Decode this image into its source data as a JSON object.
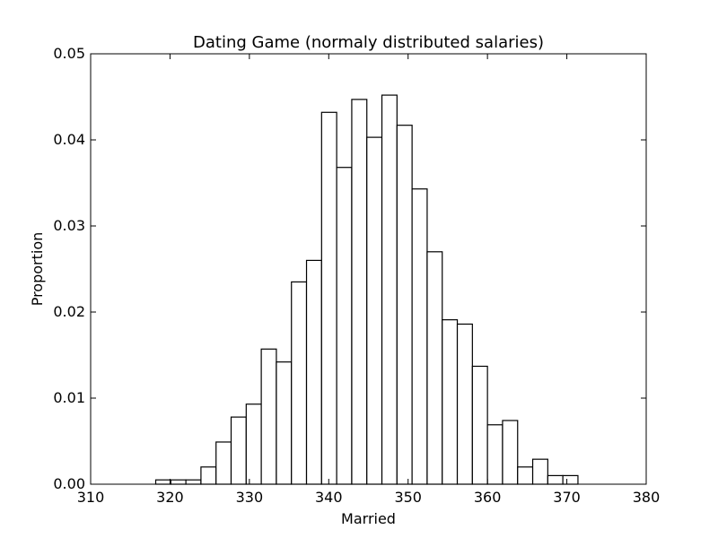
{
  "chart_data": {
    "type": "bar",
    "title": "Dating Game (normaly distributed salaries)",
    "xlabel": "Married",
    "ylabel": "Proportion",
    "xlim": [
      310,
      380
    ],
    "ylim": [
      0,
      0.05
    ],
    "x_ticks": [
      310,
      320,
      330,
      340,
      350,
      360,
      370,
      380
    ],
    "x_tick_labels": [
      "310",
      "320",
      "330",
      "340",
      "350",
      "360",
      "370",
      "380"
    ],
    "y_ticks": [
      0,
      0.01,
      0.02,
      0.03,
      0.04,
      0.05
    ],
    "y_tick_labels": [
      "0.00",
      "0.01",
      "0.02",
      "0.03",
      "0.04",
      "0.05"
    ],
    "bin_width": 1.9,
    "bins": [
      {
        "start": 318.2,
        "value": 0.0005
      },
      {
        "start": 320.1,
        "value": 0.0005
      },
      {
        "start": 322.0,
        "value": 0.0005
      },
      {
        "start": 323.9,
        "value": 0.002
      },
      {
        "start": 325.8,
        "value": 0.0049
      },
      {
        "start": 327.7,
        "value": 0.0078
      },
      {
        "start": 329.6,
        "value": 0.0093
      },
      {
        "start": 331.5,
        "value": 0.0157
      },
      {
        "start": 333.4,
        "value": 0.0142
      },
      {
        "start": 335.3,
        "value": 0.0235
      },
      {
        "start": 337.2,
        "value": 0.026
      },
      {
        "start": 339.1,
        "value": 0.0432
      },
      {
        "start": 341.0,
        "value": 0.0368
      },
      {
        "start": 342.9,
        "value": 0.0447
      },
      {
        "start": 344.8,
        "value": 0.0403
      },
      {
        "start": 346.7,
        "value": 0.0452
      },
      {
        "start": 348.6,
        "value": 0.0417
      },
      {
        "start": 350.5,
        "value": 0.0343
      },
      {
        "start": 352.4,
        "value": 0.027
      },
      {
        "start": 354.3,
        "value": 0.0191
      },
      {
        "start": 356.2,
        "value": 0.0186
      },
      {
        "start": 358.1,
        "value": 0.0137
      },
      {
        "start": 360.0,
        "value": 0.0069
      },
      {
        "start": 361.9,
        "value": 0.0074
      },
      {
        "start": 363.8,
        "value": 0.002
      },
      {
        "start": 365.7,
        "value": 0.0029
      },
      {
        "start": 367.6,
        "value": 0.001
      },
      {
        "start": 369.5,
        "value": 0.001
      }
    ],
    "grid": false,
    "legend": "none"
  }
}
